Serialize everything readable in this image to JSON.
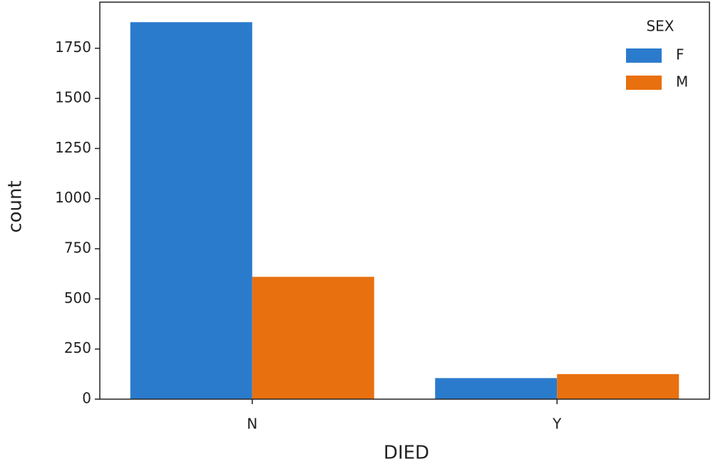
{
  "chart_data": {
    "type": "grouped_bar",
    "x_label": "DIED",
    "y_label": "count",
    "categories": [
      "N",
      "Y"
    ],
    "series": [
      {
        "name": "F",
        "color": "#2b7bcd",
        "values": [
          1880,
          105
        ]
      },
      {
        "name": "M",
        "color": "#e8700e",
        "values": [
          610,
          125
        ]
      }
    ],
    "legend_title": "SEX",
    "legend_position": "upper right",
    "ylim": [
      0,
      1980
    ],
    "yticks": [
      0,
      250,
      500,
      750,
      1000,
      1250,
      1500,
      1750
    ]
  }
}
